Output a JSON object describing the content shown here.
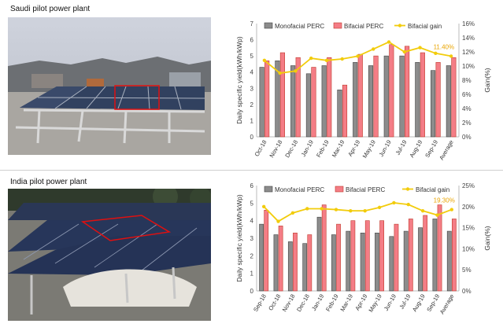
{
  "panels": [
    {
      "title": "Saudi pilot power plant"
    },
    {
      "title": "India pilot power plant"
    }
  ],
  "colors": {
    "monofacial": "#8c8c8c",
    "bifacial": "#f47d86",
    "gain": "#f2cc0c"
  },
  "chart_data": [
    {
      "type": "bar",
      "categories": [
        "Oct-18",
        "Nov-18",
        "Dec-18",
        "Jan-19",
        "Feb-19",
        "Mar-19",
        "Apr-19",
        "May-19",
        "Jun-19",
        "Jul-19",
        "Aug-19",
        "Sep-19",
        "Average"
      ],
      "series": [
        {
          "name": "Monofacial PERC",
          "values": [
            4.3,
            4.7,
            4.4,
            3.9,
            4.4,
            2.9,
            4.6,
            4.4,
            5.0,
            5.0,
            4.6,
            4.1,
            4.4
          ]
        },
        {
          "name": "Bifacial PERC",
          "values": [
            4.7,
            5.2,
            4.9,
            4.3,
            4.9,
            3.2,
            5.1,
            5.0,
            5.7,
            5.6,
            5.2,
            4.6,
            4.9
          ]
        },
        {
          "name": "Bifacial gain",
          "axis": "right",
          "values": [
            10.8,
            9.0,
            9.3,
            11.1,
            10.8,
            11.0,
            11.4,
            12.4,
            13.4,
            12.0,
            12.6,
            11.8,
            11.4
          ]
        }
      ],
      "ylabel": "Daily specific yield(kWh/kWp)",
      "ylabel_right": "Gain(%)",
      "ylim": [
        0,
        7
      ],
      "y_ticks": [
        0,
        1,
        2,
        3,
        4,
        5,
        6,
        7
      ],
      "ylim_right": [
        0,
        16
      ],
      "y_right_ticks": [
        "0%",
        "2%",
        "4%",
        "6%",
        "8%",
        "10%",
        "12%",
        "14%",
        "16%"
      ],
      "annotation": "11.40%",
      "legend": "top",
      "grid": false
    },
    {
      "type": "bar",
      "categories": [
        "Sep-18",
        "Oct-18",
        "Nov-18",
        "Dec-18",
        "Jan-19",
        "Feb-19",
        "Mar-19",
        "Apr-19",
        "May-19",
        "Jun-19",
        "Jul-19",
        "Aug-19",
        "Sep-19",
        "Average"
      ],
      "series": [
        {
          "name": "Monofacial PERC",
          "values": [
            3.8,
            3.2,
            2.8,
            2.7,
            4.2,
            3.2,
            3.4,
            3.3,
            3.3,
            3.1,
            3.4,
            3.6,
            4.1,
            3.4
          ]
        },
        {
          "name": "Bifacial PERC",
          "values": [
            4.6,
            3.7,
            3.3,
            3.2,
            4.9,
            3.8,
            4.0,
            4.0,
            4.0,
            3.8,
            4.1,
            4.3,
            4.9,
            4.1
          ]
        },
        {
          "name": "Bifacial gain",
          "axis": "right",
          "values": [
            20.0,
            16.5,
            18.5,
            19.5,
            19.5,
            19.3,
            19.0,
            19.0,
            19.8,
            20.9,
            20.5,
            19.0,
            18.0,
            19.3
          ]
        }
      ],
      "ylabel": "Daily specific yield(kWh/kWp)",
      "ylabel_right": "Gain(%)",
      "ylim": [
        0,
        6
      ],
      "y_ticks": [
        0,
        1,
        2,
        3,
        4,
        5,
        6
      ],
      "ylim_right": [
        0,
        25
      ],
      "y_right_ticks": [
        "0%",
        "5%",
        "10%",
        "15%",
        "20%",
        "25%"
      ],
      "annotation": "19.30%",
      "legend": "top",
      "grid": false
    }
  ]
}
